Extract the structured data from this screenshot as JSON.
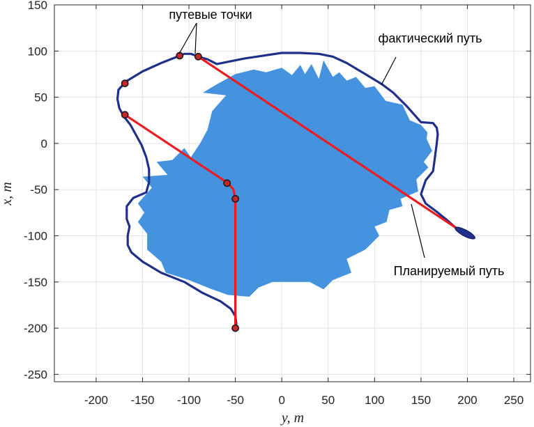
{
  "chart_data": {
    "type": "line",
    "xlabel": "y, m",
    "ylabel": "x, m",
    "xlim": [
      -245,
      268
    ],
    "ylim": [
      -258,
      150
    ],
    "x_ticks": [
      -200,
      -150,
      -100,
      -50,
      0,
      50,
      100,
      150,
      200,
      250
    ],
    "y_ticks": [
      150,
      100,
      50,
      0,
      -50,
      -100,
      -150,
      -200,
      -250
    ],
    "x_tick_labels": [
      "-200",
      "-150",
      "-100",
      "-50",
      "0",
      "50",
      "100",
      "150",
      "200",
      "250"
    ],
    "y_tick_labels": [
      "150",
      "100",
      "50",
      "0",
      "-50",
      "-100",
      "-150",
      "-200",
      "-250"
    ],
    "grid": true,
    "colors": {
      "obstacle": "#4593de",
      "actual_path": "#1f2f8a",
      "planned_path": "#ee1a1f",
      "waypoint_fill": "#c8262a",
      "grid": "#e3e3e3"
    },
    "annotations": {
      "waypoints": "путевые точки",
      "actual": "фактический путь",
      "planned": "Планируемый путь"
    },
    "series": [
      {
        "name": "фактический путь",
        "kind": "actual",
        "points": [
          [
            187,
            -91
          ],
          [
            178,
            -83
          ],
          [
            167,
            -74
          ],
          [
            155,
            -65
          ],
          [
            150,
            -55
          ],
          [
            155,
            -40
          ],
          [
            163,
            -30
          ],
          [
            165,
            -15
          ],
          [
            167,
            0
          ],
          [
            168,
            10
          ],
          [
            167,
            17
          ],
          [
            163,
            22
          ],
          [
            150,
            23
          ],
          [
            135,
            40
          ],
          [
            120,
            55
          ],
          [
            108,
            64
          ],
          [
            90,
            75
          ],
          [
            70,
            87
          ],
          [
            55,
            94
          ],
          [
            40,
            97
          ],
          [
            20,
            98
          ],
          [
            0,
            98
          ],
          [
            -20,
            95
          ],
          [
            -40,
            92
          ],
          [
            -55,
            89
          ],
          [
            -70,
            86
          ],
          [
            -80,
            91
          ],
          [
            -90,
            94
          ],
          [
            -98,
            97
          ],
          [
            -105,
            97
          ],
          [
            -115,
            93
          ],
          [
            -130,
            87
          ],
          [
            -150,
            78
          ],
          [
            -168,
            67
          ],
          [
            -176,
            58
          ],
          [
            -177,
            48
          ],
          [
            -175,
            38
          ],
          [
            -170,
            29
          ],
          [
            -163,
            20
          ],
          [
            -157,
            9
          ],
          [
            -151,
            -2
          ],
          [
            -146,
            -15
          ],
          [
            -143,
            -28
          ],
          [
            -143,
            -42
          ],
          [
            -146,
            -53
          ],
          [
            -160,
            -59
          ],
          [
            -167,
            -68
          ],
          [
            -167,
            -82
          ],
          [
            -164,
            -90
          ],
          [
            -166,
            -100
          ],
          [
            -166,
            -110
          ],
          [
            -162,
            -118
          ],
          [
            -150,
            -128
          ],
          [
            -130,
            -140
          ],
          [
            -105,
            -150
          ],
          [
            -85,
            -162
          ],
          [
            -66,
            -171
          ],
          [
            -55,
            -179
          ],
          [
            -50,
            -187
          ],
          [
            -49,
            -195
          ],
          [
            -50,
            -200
          ]
        ]
      },
      {
        "name": "Планируемый путь",
        "kind": "planned",
        "points": [
          [
            -50,
            -200
          ],
          [
            -50,
            -60
          ],
          [
            -52,
            -50
          ],
          [
            -58,
            -43
          ],
          [
            -169,
            31
          ]
        ]
      },
      {
        "name": "Планируемый путь",
        "kind": "planned",
        "points": [
          [
            -90,
            94
          ],
          [
            190,
            -93
          ]
        ]
      },
      {
        "name": "путевые точки",
        "kind": "waypoints",
        "points": [
          [
            -110,
            95
          ],
          [
            -90,
            94
          ],
          [
            -169,
            65
          ],
          [
            -169,
            31
          ],
          [
            -59,
            -43
          ],
          [
            -50,
            -60
          ],
          [
            -50,
            -200
          ]
        ]
      }
    ],
    "obstacle": {
      "points": [
        [
          -75,
          35
        ],
        [
          -60,
          52
        ],
        [
          -85,
          55
        ],
        [
          -70,
          64
        ],
        [
          -50,
          75
        ],
        [
          -30,
          80
        ],
        [
          -17,
          77
        ],
        [
          0,
          82
        ],
        [
          11,
          74
        ],
        [
          20,
          85
        ],
        [
          25,
          75
        ],
        [
          32,
          86
        ],
        [
          40,
          70
        ],
        [
          45,
          90
        ],
        [
          55,
          72
        ],
        [
          62,
          77
        ],
        [
          70,
          68
        ],
        [
          80,
          72
        ],
        [
          90,
          60
        ],
        [
          100,
          62
        ],
        [
          112,
          46
        ],
        [
          130,
          42
        ],
        [
          138,
          25
        ],
        [
          150,
          20
        ],
        [
          157,
          12
        ],
        [
          156,
          5
        ],
        [
          162,
          -8
        ],
        [
          153,
          -20
        ],
        [
          158,
          -26
        ],
        [
          145,
          -39
        ],
        [
          147,
          -52
        ],
        [
          128,
          -60
        ],
        [
          130,
          -68
        ],
        [
          116,
          -72
        ],
        [
          113,
          -85
        ],
        [
          100,
          -90
        ],
        [
          105,
          -100
        ],
        [
          90,
          -115
        ],
        [
          70,
          -125
        ],
        [
          75,
          -140
        ],
        [
          55,
          -148
        ],
        [
          45,
          -158
        ],
        [
          30,
          -150
        ],
        [
          10,
          -150
        ],
        [
          -10,
          -150
        ],
        [
          -25,
          -156
        ],
        [
          -35,
          -166
        ],
        [
          -58,
          -164
        ],
        [
          -75,
          -158
        ],
        [
          -100,
          -148
        ],
        [
          -125,
          -140
        ],
        [
          -130,
          -128
        ],
        [
          -145,
          -115
        ],
        [
          -145,
          -98
        ],
        [
          -155,
          -85
        ],
        [
          -148,
          -75
        ],
        [
          -155,
          -65
        ],
        [
          -140,
          -48
        ],
        [
          -150,
          -36
        ],
        [
          -123,
          -34
        ],
        [
          -135,
          -20
        ],
        [
          -118,
          -18
        ],
        [
          -105,
          -5
        ],
        [
          -98,
          -15
        ],
        [
          -88,
          0
        ],
        [
          -80,
          15
        ]
      ]
    }
  }
}
